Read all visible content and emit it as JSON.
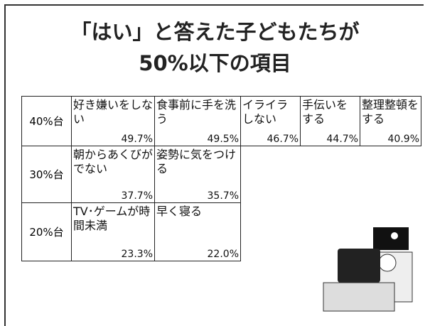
{
  "title": {
    "lines": [
      "「はい」と答えた子どもたちが",
      "50%以下の項目"
    ]
  },
  "table": {
    "rows": [
      {
        "label": "40%台",
        "items": [
          {
            "label": "好き嫌いをしない",
            "value": "49.7%"
          },
          {
            "label": "食事前に手を洗う",
            "value": "49.5%"
          },
          {
            "label": "イライラしない",
            "value": "46.7%"
          },
          {
            "label": "手伝いをする",
            "value": "44.7%"
          },
          {
            "label": "整理整頓をする",
            "value": "40.9%"
          }
        ]
      },
      {
        "label": "30%台",
        "items": [
          {
            "label": "朝からあくびがでない",
            "value": "37.7%"
          },
          {
            "label": "姿勢に気をつける",
            "value": "35.7%"
          }
        ]
      },
      {
        "label": "20%台",
        "items": [
          {
            "label": "TV･ゲームが時間未満",
            "value": "23.3%"
          },
          {
            "label": "早く寝る",
            "value": "22.0%"
          }
        ]
      }
    ]
  }
}
